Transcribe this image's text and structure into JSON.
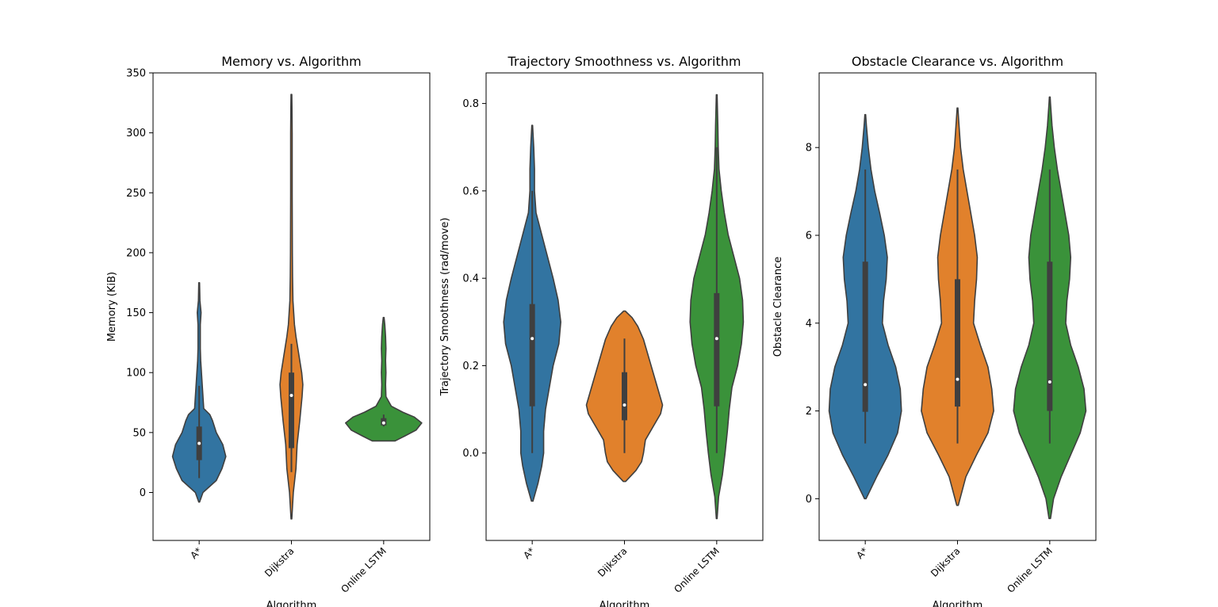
{
  "chart_data": [
    {
      "type": "violin",
      "title": "Memory vs. Algorithm",
      "xlabel": "Algorithm",
      "ylabel": "Memory (KiB)",
      "ylim": [
        -40,
        350
      ],
      "yticks": [
        0,
        50,
        100,
        150,
        200,
        250,
        300,
        350
      ],
      "categories": [
        "A*",
        "Dijkstra",
        "Online LSTM"
      ],
      "colors": [
        "#3274a1",
        "#e1812c",
        "#3a923a"
      ],
      "series": [
        {
          "name": "A*",
          "extent": [
            -8,
            175
          ],
          "whisker": [
            12,
            89
          ],
          "q1": 27,
          "median": 41,
          "q3": 55,
          "density": [
            [
              -8,
              0.01
            ],
            [
              0,
              0.1
            ],
            [
              10,
              0.45
            ],
            [
              20,
              0.6
            ],
            [
              30,
              0.7
            ],
            [
              40,
              0.62
            ],
            [
              50,
              0.45
            ],
            [
              60,
              0.35
            ],
            [
              65,
              0.28
            ],
            [
              70,
              0.12
            ],
            [
              80,
              0.1
            ],
            [
              90,
              0.08
            ],
            [
              100,
              0.06
            ],
            [
              110,
              0.04
            ],
            [
              120,
              0.03
            ],
            [
              130,
              0.03
            ],
            [
              140,
              0.03
            ],
            [
              150,
              0.05
            ],
            [
              160,
              0.02
            ],
            [
              175,
              0.01
            ]
          ]
        },
        {
          "name": "Dijkstra",
          "extent": [
            -22,
            332
          ],
          "whisker": [
            17,
            124
          ],
          "q1": 37,
          "median": 81,
          "q3": 100,
          "density": [
            [
              -22,
              0.01
            ],
            [
              0,
              0.05
            ],
            [
              20,
              0.12
            ],
            [
              40,
              0.15
            ],
            [
              60,
              0.22
            ],
            [
              80,
              0.28
            ],
            [
              90,
              0.3
            ],
            [
              100,
              0.27
            ],
            [
              110,
              0.22
            ],
            [
              120,
              0.17
            ],
            [
              130,
              0.12
            ],
            [
              140,
              0.08
            ],
            [
              150,
              0.06
            ],
            [
              160,
              0.04
            ],
            [
              180,
              0.03
            ],
            [
              200,
              0.025
            ],
            [
              250,
              0.02
            ],
            [
              300,
              0.02
            ],
            [
              320,
              0.015
            ],
            [
              332,
              0.01
            ]
          ]
        },
        {
          "name": "Online LSTM",
          "extent": [
            43,
            146
          ],
          "whisker": [
            55,
            65
          ],
          "q1": 56,
          "median": 58,
          "q3": 62,
          "density": [
            [
              43,
              0.3
            ],
            [
              47,
              0.55
            ],
            [
              52,
              0.85
            ],
            [
              58,
              1.0
            ],
            [
              63,
              0.8
            ],
            [
              67,
              0.5
            ],
            [
              72,
              0.2
            ],
            [
              80,
              0.06
            ],
            [
              90,
              0.05
            ],
            [
              100,
              0.06
            ],
            [
              110,
              0.05
            ],
            [
              120,
              0.06
            ],
            [
              130,
              0.05
            ],
            [
              140,
              0.03
            ],
            [
              146,
              0.01
            ]
          ]
        }
      ]
    },
    {
      "type": "violin",
      "title": "Trajectory Smoothness vs. Algorithm",
      "xlabel": "Algorithm",
      "ylabel": "Trajectory Smoothness (rad/move)",
      "ylim": [
        -0.2,
        0.87
      ],
      "yticks": [
        "0.0",
        "0.2",
        "0.4",
        "0.6",
        "0.8"
      ],
      "categories": [
        "A*",
        "Dijkstra",
        "Online LSTM"
      ],
      "colors": [
        "#3274a1",
        "#e1812c",
        "#3a923a"
      ],
      "series": [
        {
          "name": "A*",
          "extent": [
            -0.11,
            0.75
          ],
          "whisker": [
            0.0,
            0.6
          ],
          "q1": 0.107,
          "median": 0.262,
          "q3": 0.341,
          "density": [
            [
              -0.11,
              0.02
            ],
            [
              -0.07,
              0.15
            ],
            [
              -0.03,
              0.25
            ],
            [
              0.0,
              0.3
            ],
            [
              0.05,
              0.3
            ],
            [
              0.1,
              0.35
            ],
            [
              0.15,
              0.45
            ],
            [
              0.2,
              0.55
            ],
            [
              0.25,
              0.7
            ],
            [
              0.3,
              0.75
            ],
            [
              0.35,
              0.68
            ],
            [
              0.4,
              0.55
            ],
            [
              0.45,
              0.4
            ],
            [
              0.5,
              0.25
            ],
            [
              0.55,
              0.1
            ],
            [
              0.6,
              0.06
            ],
            [
              0.65,
              0.06
            ],
            [
              0.7,
              0.04
            ],
            [
              0.75,
              0.01
            ]
          ]
        },
        {
          "name": "Dijkstra",
          "extent": [
            -0.065,
            0.325
          ],
          "whisker": [
            0.0,
            0.262
          ],
          "q1": 0.075,
          "median": 0.11,
          "q3": 0.185,
          "density": [
            [
              -0.065,
              0.03
            ],
            [
              -0.04,
              0.3
            ],
            [
              -0.02,
              0.45
            ],
            [
              0.0,
              0.5
            ],
            [
              0.03,
              0.55
            ],
            [
              0.06,
              0.75
            ],
            [
              0.09,
              0.95
            ],
            [
              0.11,
              1.0
            ],
            [
              0.14,
              0.9
            ],
            [
              0.17,
              0.8
            ],
            [
              0.2,
              0.7
            ],
            [
              0.23,
              0.6
            ],
            [
              0.26,
              0.5
            ],
            [
              0.29,
              0.35
            ],
            [
              0.31,
              0.2
            ],
            [
              0.325,
              0.02
            ]
          ]
        },
        {
          "name": "Online LSTM",
          "extent": [
            -0.15,
            0.82
          ],
          "whisker": [
            0.0,
            0.7
          ],
          "q1": 0.107,
          "median": 0.262,
          "q3": 0.366,
          "density": [
            [
              -0.15,
              0.01
            ],
            [
              -0.1,
              0.05
            ],
            [
              -0.05,
              0.15
            ],
            [
              0.0,
              0.22
            ],
            [
              0.05,
              0.28
            ],
            [
              0.1,
              0.33
            ],
            [
              0.15,
              0.4
            ],
            [
              0.2,
              0.55
            ],
            [
              0.25,
              0.65
            ],
            [
              0.3,
              0.7
            ],
            [
              0.35,
              0.68
            ],
            [
              0.4,
              0.6
            ],
            [
              0.45,
              0.45
            ],
            [
              0.5,
              0.3
            ],
            [
              0.55,
              0.2
            ],
            [
              0.6,
              0.12
            ],
            [
              0.65,
              0.06
            ],
            [
              0.7,
              0.04
            ],
            [
              0.75,
              0.03
            ],
            [
              0.82,
              0.01
            ]
          ]
        }
      ]
    },
    {
      "type": "violin",
      "title": "Obstacle Clearance vs. Algorithm",
      "xlabel": "Algorithm",
      "ylabel": "Obstacle Clearance",
      "ylim": [
        -0.95,
        9.7
      ],
      "yticks": [
        0,
        2,
        4,
        6,
        8
      ],
      "categories": [
        "A*",
        "Dijkstra",
        "Online LSTM"
      ],
      "colors": [
        "#3274a1",
        "#e1812c",
        "#3a923a"
      ],
      "series": [
        {
          "name": "A*",
          "extent": [
            0.0,
            8.75
          ],
          "whisker": [
            1.26,
            7.5
          ],
          "q1": 1.98,
          "median": 2.6,
          "q3": 5.4,
          "density": [
            [
              0.0,
              0.02
            ],
            [
              0.5,
              0.3
            ],
            [
              1.0,
              0.6
            ],
            [
              1.5,
              0.85
            ],
            [
              2.0,
              0.95
            ],
            [
              2.5,
              0.92
            ],
            [
              3.0,
              0.8
            ],
            [
              3.5,
              0.6
            ],
            [
              4.0,
              0.45
            ],
            [
              4.5,
              0.48
            ],
            [
              5.0,
              0.55
            ],
            [
              5.5,
              0.58
            ],
            [
              6.0,
              0.5
            ],
            [
              6.5,
              0.38
            ],
            [
              7.0,
              0.25
            ],
            [
              7.5,
              0.15
            ],
            [
              8.0,
              0.08
            ],
            [
              8.5,
              0.03
            ],
            [
              8.75,
              0.01
            ]
          ]
        },
        {
          "name": "Dijkstra",
          "extent": [
            -0.15,
            8.9
          ],
          "whisker": [
            1.26,
            7.5
          ],
          "q1": 2.1,
          "median": 2.72,
          "q3": 5.0,
          "density": [
            [
              -0.15,
              0.02
            ],
            [
              0.5,
              0.22
            ],
            [
              1.0,
              0.5
            ],
            [
              1.5,
              0.8
            ],
            [
              2.0,
              0.95
            ],
            [
              2.5,
              0.9
            ],
            [
              3.0,
              0.8
            ],
            [
              3.5,
              0.6
            ],
            [
              4.0,
              0.42
            ],
            [
              4.5,
              0.45
            ],
            [
              5.0,
              0.5
            ],
            [
              5.5,
              0.52
            ],
            [
              6.0,
              0.45
            ],
            [
              6.5,
              0.35
            ],
            [
              7.0,
              0.25
            ],
            [
              7.5,
              0.15
            ],
            [
              8.0,
              0.08
            ],
            [
              8.5,
              0.04
            ],
            [
              8.9,
              0.01
            ]
          ]
        },
        {
          "name": "Online LSTM",
          "extent": [
            -0.45,
            9.15
          ],
          "whisker": [
            1.26,
            7.5
          ],
          "q1": 2.0,
          "median": 2.66,
          "q3": 5.4,
          "density": [
            [
              -0.45,
              0.02
            ],
            [
              0.0,
              0.1
            ],
            [
              0.5,
              0.3
            ],
            [
              1.0,
              0.55
            ],
            [
              1.5,
              0.8
            ],
            [
              2.0,
              0.95
            ],
            [
              2.5,
              0.9
            ],
            [
              3.0,
              0.75
            ],
            [
              3.5,
              0.55
            ],
            [
              4.0,
              0.42
            ],
            [
              4.5,
              0.45
            ],
            [
              5.0,
              0.52
            ],
            [
              5.5,
              0.55
            ],
            [
              6.0,
              0.5
            ],
            [
              6.5,
              0.4
            ],
            [
              7.0,
              0.3
            ],
            [
              7.5,
              0.2
            ],
            [
              8.0,
              0.12
            ],
            [
              8.5,
              0.06
            ],
            [
              9.0,
              0.02
            ],
            [
              9.15,
              0.01
            ]
          ]
        }
      ]
    }
  ]
}
